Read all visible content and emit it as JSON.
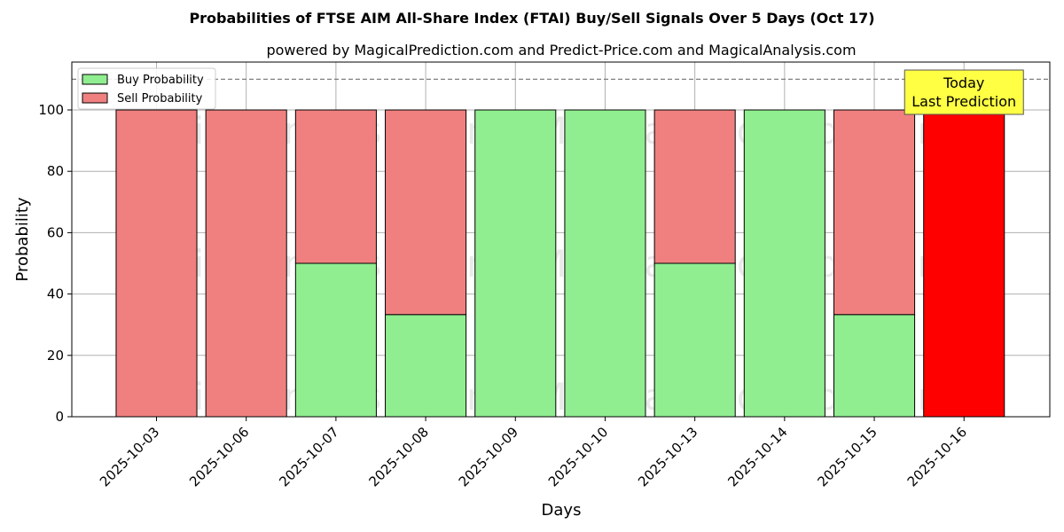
{
  "chart_data": {
    "type": "bar",
    "title": "Probabilities of FTSE AIM All-Share Index (FTAI) Buy/Sell Signals Over 5 Days (Oct 17)",
    "subtitle": "powered by MagicalPrediction.com and Predict-Price.com and MagicalAnalysis.com",
    "xlabel": "Days",
    "ylabel": "Probability",
    "ylim": [
      0,
      115
    ],
    "yticks": [
      0,
      20,
      40,
      60,
      80,
      100
    ],
    "categories": [
      "2025-10-03",
      "2025-10-06",
      "2025-10-07",
      "2025-10-08",
      "2025-10-09",
      "2025-10-10",
      "2025-10-13",
      "2025-10-14",
      "2025-10-15",
      "2025-10-16"
    ],
    "stacked": true,
    "series": [
      {
        "name": "Buy Probability",
        "color": "#90ee90",
        "values": [
          0,
          0,
          50,
          33.3,
          100,
          100,
          50,
          100,
          33.3,
          0
        ]
      },
      {
        "name": "Sell Probability",
        "color": "#f08080",
        "values": [
          100,
          100,
          50,
          66.7,
          0,
          0,
          50,
          0,
          66.7,
          100
        ]
      }
    ],
    "highlight": {
      "category": "2025-10-16",
      "color": "#ff0000"
    },
    "reference_line": {
      "y": 110,
      "style": "dashed",
      "color": "#808080"
    },
    "annotation": {
      "lines": [
        "Today",
        "Last Prediction"
      ],
      "background": "#ffff44"
    },
    "legend": {
      "position": "top-left"
    },
    "grid": true,
    "watermarks": [
      "MagicalAnalysis.com",
      "MagicalPrediction.com"
    ]
  }
}
